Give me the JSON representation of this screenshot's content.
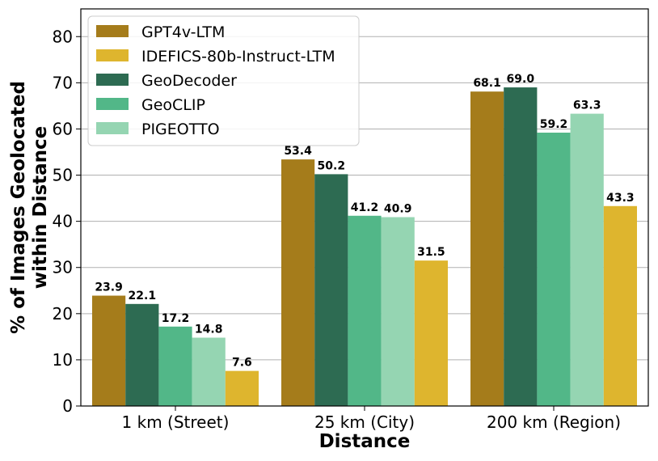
{
  "chart_data": {
    "type": "bar",
    "title": "",
    "xlabel": "Distance",
    "ylabel": [
      "% of Images Geolocated",
      "within Distance"
    ],
    "categories": [
      "1 km (Street)",
      "25 km (City)",
      "200 km (Region)"
    ],
    "ylim": [
      0,
      86
    ],
    "yticks": [
      0,
      10,
      20,
      30,
      40,
      50,
      60,
      70,
      80
    ],
    "grid": true,
    "legend_position": "top-left",
    "series": [
      {
        "name": "GPT4v-LTM",
        "color": "#A57C1B",
        "values": [
          23.9,
          53.4,
          68.1
        ]
      },
      {
        "name": "IDEFICS-80b-Instruct-LTM",
        "color": "#DEB52E",
        "values": [
          7.6,
          31.5,
          43.3
        ]
      },
      {
        "name": "GeoDecoder",
        "color": "#2D6B52",
        "values": [
          22.1,
          50.2,
          69.0
        ]
      },
      {
        "name": "GeoCLIP",
        "color": "#52B788",
        "values": [
          17.2,
          41.2,
          59.2
        ]
      },
      {
        "name": "PIGEOTTO",
        "color": "#95D5B2",
        "values": [
          14.8,
          40.9,
          63.3
        ]
      }
    ],
    "bar_order": [
      [
        "GPT4v-LTM",
        "GeoDecoder",
        "GeoCLIP",
        "PIGEOTTO",
        "IDEFICS-80b-Instruct-LTM"
      ],
      [
        "GPT4v-LTM",
        "GeoDecoder",
        "GeoCLIP",
        "PIGEOTTO",
        "IDEFICS-80b-Instruct-LTM"
      ],
      [
        "GPT4v-LTM",
        "GeoDecoder",
        "GeoCLIP",
        "PIGEOTTO",
        "IDEFICS-80b-Instruct-LTM"
      ]
    ]
  }
}
